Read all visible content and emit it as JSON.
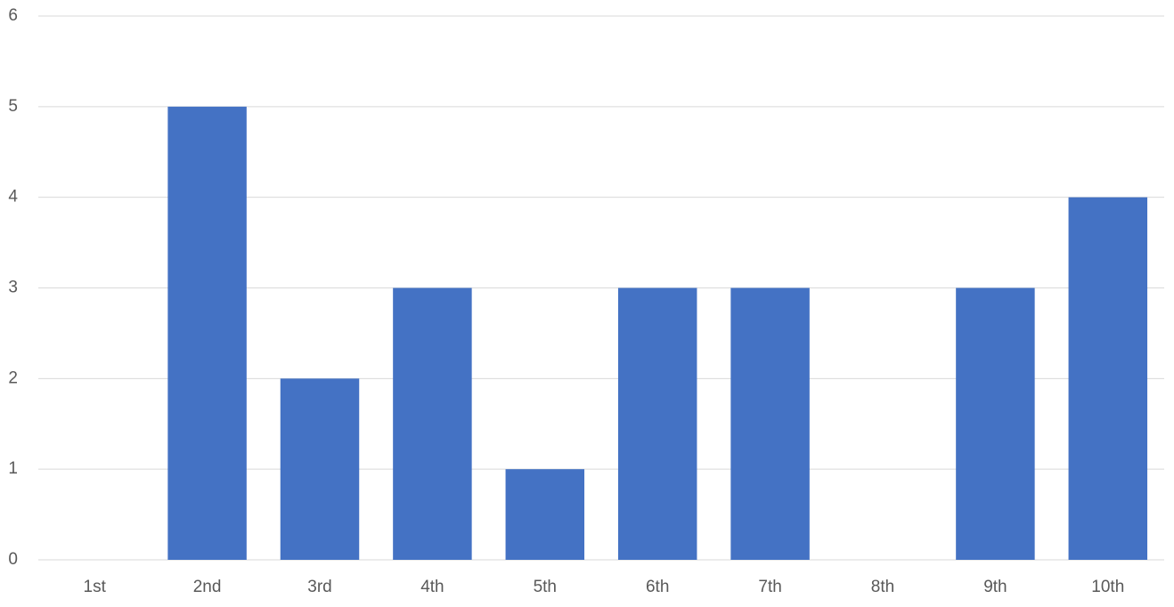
{
  "chart_data": {
    "type": "bar",
    "categories": [
      "1st",
      "2nd",
      "3rd",
      "4th",
      "5th",
      "6th",
      "7th",
      "8th",
      "9th",
      "10th"
    ],
    "values": [
      0,
      5,
      2,
      3,
      1,
      3,
      3,
      0,
      3,
      4
    ],
    "color": "#4472c4",
    "ylim": [
      0,
      6
    ],
    "yticks": [
      0,
      1,
      2,
      3,
      4,
      5,
      6
    ],
    "grid": true
  }
}
